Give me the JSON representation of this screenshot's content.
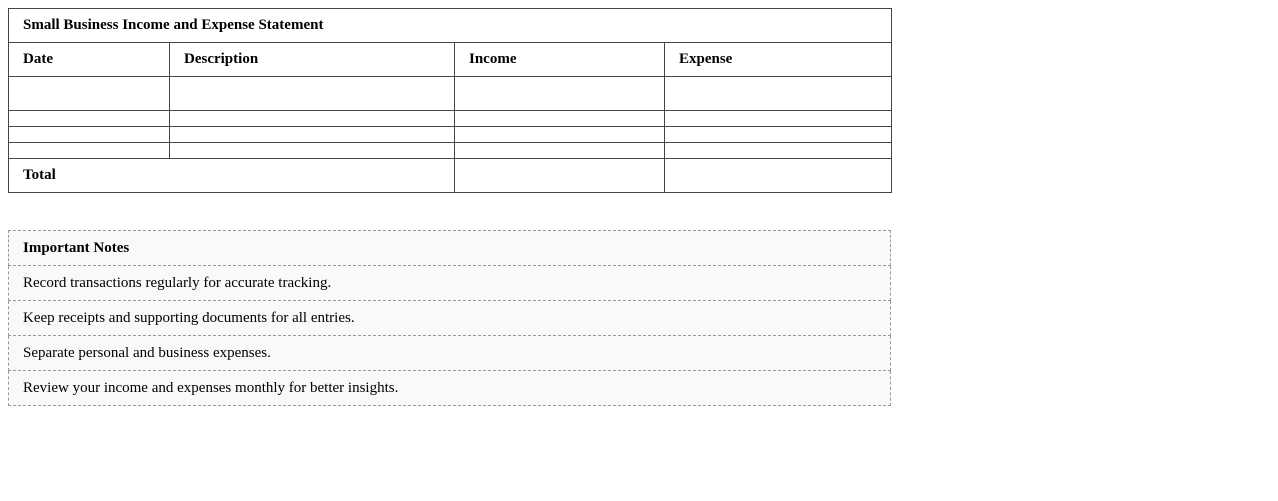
{
  "statement": {
    "title": "Small Business Income and Expense Statement",
    "columns": [
      "Date",
      "Description",
      "Income",
      "Expense"
    ],
    "rows": [
      [
        "",
        "",
        "",
        ""
      ],
      [
        "",
        "",
        "",
        ""
      ],
      [
        "",
        "",
        "",
        ""
      ],
      [
        "",
        "",
        "",
        ""
      ]
    ],
    "total_label": "Total",
    "total_income": "",
    "total_expense": ""
  },
  "notes": {
    "title": "Important Notes",
    "items": [
      "Record transactions regularly for accurate tracking.",
      "Keep receipts and supporting documents for all entries.",
      "Separate personal and business expenses.",
      "Review your income and expenses monthly for better insights."
    ]
  }
}
